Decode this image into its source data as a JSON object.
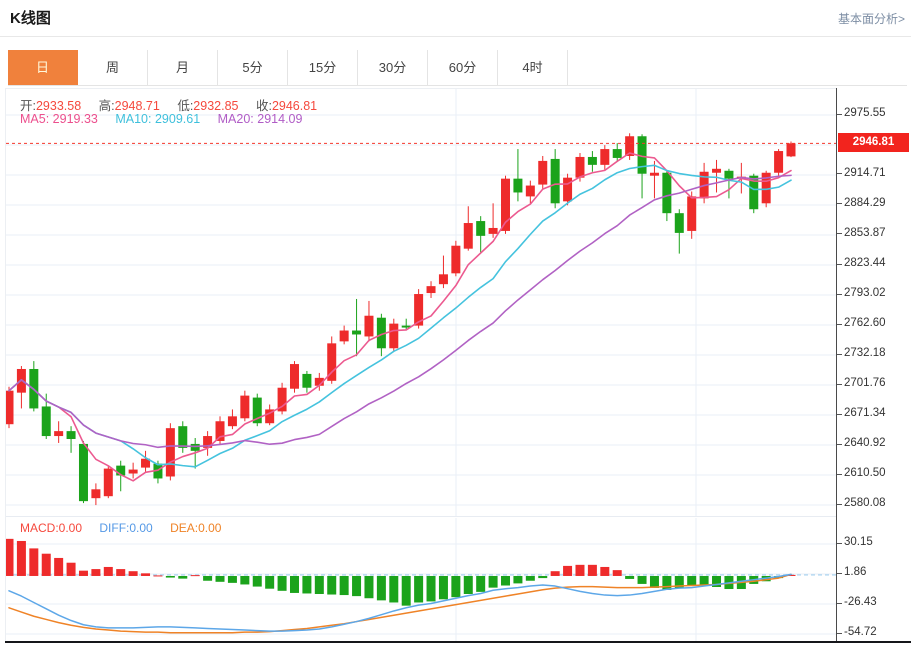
{
  "header": {
    "title": "K线图",
    "link": "基本面分析>"
  },
  "tabs": {
    "items": [
      {
        "label": "日",
        "active": true
      },
      {
        "label": "周",
        "active": false
      },
      {
        "label": "月",
        "active": false
      },
      {
        "label": "5分",
        "active": false
      },
      {
        "label": "15分",
        "active": false
      },
      {
        "label": "30分",
        "active": false
      },
      {
        "label": "60分",
        "active": false
      },
      {
        "label": "4时",
        "active": false
      }
    ]
  },
  "ohlc": {
    "open_label": "开:",
    "open": "2933.58",
    "high_label": "高:",
    "high": "2948.71",
    "low_label": "低:",
    "low": "2932.85",
    "close_label": "收:",
    "close": "2946.81"
  },
  "ma": {
    "ma5_label": "MA5:",
    "ma5": "2919.33",
    "ma10_label": "MA10:",
    "ma10": "2909.61",
    "ma20_label": "MA20:",
    "ma20": "2914.09"
  },
  "macd_panel": {
    "macd_label": "MACD:",
    "macd_value": "0.00",
    "diff_label": "DIFF:",
    "diff_value": "0.00",
    "dea_label": "DEA:",
    "dea_value": "0.00"
  },
  "main_axis": {
    "current_price": "2946.81"
  },
  "colors": {
    "accent_orange": "#f0813c",
    "candle_up": "#ee2b2b",
    "candle_down": "#1ba31b",
    "ma5": "#ec5a90",
    "ma10": "#45c3de",
    "ma20": "#b162c4",
    "price_line": "#f5382c",
    "tag_bg": "#f2241e",
    "diff_line": "#5da7e8",
    "dea_line": "#ef8327",
    "grid": "#eaeff7",
    "macd_dash": "#b8daf2",
    "text_red": "#f5493d"
  },
  "chart_data": [
    {
      "type": "candlestick",
      "interval": "日",
      "current_price": 2946.81,
      "y_axis_ticks": [
        "2975.55",
        "2914.71",
        "2884.29",
        "2853.87",
        "2823.44",
        "2793.02",
        "2762.60",
        "2732.18",
        "2701.76",
        "2671.34",
        "2640.92",
        "2610.50",
        "2580.08"
      ],
      "y_tick_values": [
        2975.55,
        2914.71,
        2884.29,
        2853.87,
        2823.44,
        2793.02,
        2762.6,
        2732.18,
        2701.76,
        2671.34,
        2640.92,
        2610.5,
        2580.08
      ],
      "gridline_values": [
        2975.55,
        2945.13,
        2914.71,
        2884.29,
        2853.87,
        2823.44,
        2793.02,
        2762.6,
        2732.18,
        2701.76,
        2671.34,
        2640.92,
        2610.5,
        2580.08
      ],
      "ma_periods": [
        5,
        10,
        20
      ],
      "candles": [
        [
          2662,
          2700,
          2658,
          2696
        ],
        [
          2694,
          2721,
          2678,
          2718
        ],
        [
          2718,
          2726,
          2675,
          2678
        ],
        [
          2680,
          2693,
          2647,
          2650
        ],
        [
          2650,
          2665,
          2643,
          2655
        ],
        [
          2655,
          2660,
          2633,
          2647
        ],
        [
          2642,
          2645,
          2582,
          2584
        ],
        [
          2587,
          2602,
          2580,
          2596
        ],
        [
          2589,
          2620,
          2587,
          2617
        ],
        [
          2620,
          2625,
          2594,
          2610
        ],
        [
          2612,
          2623,
          2607,
          2616
        ],
        [
          2618,
          2635,
          2614,
          2627
        ],
        [
          2622,
          2625,
          2602,
          2607
        ],
        [
          2609,
          2663,
          2605,
          2658
        ],
        [
          2660,
          2665,
          2633,
          2638
        ],
        [
          2642,
          2648,
          2617,
          2635
        ],
        [
          2638,
          2655,
          2630,
          2650
        ],
        [
          2645,
          2670,
          2642,
          2665
        ],
        [
          2660,
          2677,
          2657,
          2670
        ],
        [
          2668,
          2696,
          2665,
          2691
        ],
        [
          2689,
          2693,
          2660,
          2663
        ],
        [
          2663,
          2682,
          2661,
          2677
        ],
        [
          2675,
          2704,
          2672,
          2699
        ],
        [
          2698,
          2726,
          2694,
          2723
        ],
        [
          2713,
          2716,
          2694,
          2699
        ],
        [
          2701,
          2714,
          2696,
          2709
        ],
        [
          2706,
          2751,
          2703,
          2744
        ],
        [
          2746,
          2762,
          2743,
          2757
        ],
        [
          2757,
          2789,
          2731,
          2753
        ],
        [
          2751,
          2787,
          2746,
          2772
        ],
        [
          2770,
          2774,
          2731,
          2739
        ],
        [
          2739,
          2769,
          2736,
          2764
        ],
        [
          2762,
          2769,
          2757,
          2760
        ],
        [
          2762,
          2799,
          2759,
          2794
        ],
        [
          2795,
          2807,
          2790,
          2802
        ],
        [
          2804,
          2833,
          2800,
          2814
        ],
        [
          2815,
          2848,
          2812,
          2843
        ],
        [
          2840,
          2883,
          2838,
          2866
        ],
        [
          2868,
          2873,
          2836,
          2853
        ],
        [
          2855,
          2886,
          2851,
          2861
        ],
        [
          2858,
          2914,
          2855,
          2911
        ],
        [
          2911,
          2941,
          2888,
          2897
        ],
        [
          2893,
          2909,
          2886,
          2904
        ],
        [
          2905,
          2934,
          2900,
          2929
        ],
        [
          2931,
          2941,
          2881,
          2886
        ],
        [
          2888,
          2916,
          2884,
          2912
        ],
        [
          2912,
          2937,
          2908,
          2933
        ],
        [
          2933,
          2939,
          2918,
          2925
        ],
        [
          2925,
          2945,
          2920,
          2941
        ],
        [
          2941,
          2947,
          2928,
          2932
        ],
        [
          2934,
          2957,
          2930,
          2954
        ],
        [
          2954,
          2956,
          2891,
          2916
        ],
        [
          2914,
          2929,
          2891,
          2917
        ],
        [
          2917,
          2919,
          2868,
          2876
        ],
        [
          2876,
          2880,
          2835,
          2856
        ],
        [
          2858,
          2898,
          2850,
          2893
        ],
        [
          2891,
          2927,
          2886,
          2918
        ],
        [
          2917,
          2930,
          2897,
          2921
        ],
        [
          2919,
          2921,
          2891,
          2911
        ],
        [
          2911,
          2927,
          2896,
          2913
        ],
        [
          2914,
          2916,
          2876,
          2880
        ],
        [
          2886,
          2919,
          2882,
          2917
        ],
        [
          2917,
          2941,
          2913,
          2939
        ],
        [
          2933.58,
          2948.71,
          2932.85,
          2946.81
        ]
      ]
    },
    {
      "type": "bar",
      "name": "MACD",
      "y_axis_ticks": [
        "30.15",
        "1.86",
        "-26.43",
        "-54.72"
      ],
      "y_tick_values": [
        30.15,
        1.86,
        -26.43,
        -54.72
      ],
      "hist": [
        35,
        33,
        26,
        21,
        17,
        12.5,
        5,
        6.5,
        8.5,
        6.5,
        4.5,
        2.5,
        0.5,
        -1.5,
        -2.5,
        0.8,
        -4.5,
        -5.5,
        -6.5,
        -8,
        -10,
        -12,
        -14,
        -16,
        -16.5,
        -17,
        -17.5,
        -18,
        -19,
        -21,
        -23,
        -25,
        -28,
        -25,
        -24,
        -22,
        -20,
        -17,
        -15,
        -11,
        -9,
        -7,
        -4.5,
        -2,
        4.5,
        9.5,
        10.5,
        10.5,
        8.5,
        5.5,
        -2.8,
        -7.5,
        -11.3,
        -13.2,
        -11.3,
        -9.4,
        -8.5,
        -10.4,
        -12.3,
        -12.3,
        -7.5,
        -5,
        -2,
        1
      ],
      "diff": [
        -14,
        -19,
        -25,
        -31,
        -37,
        -42,
        -46,
        -48,
        -49,
        -49,
        -49,
        -48.5,
        -48,
        -48,
        -48.5,
        -49,
        -49.5,
        -50,
        -50.5,
        -51,
        -51.5,
        -52,
        -52,
        -51.5,
        -51,
        -50,
        -48,
        -45.5,
        -43,
        -40,
        -36.5,
        -33,
        -30,
        -27.5,
        -26,
        -23.5,
        -21,
        -18.5,
        -16.5,
        -13.5,
        -12,
        -11,
        -9.5,
        -8.5,
        -9.5,
        -12,
        -14.5,
        -16.5,
        -18,
        -18.5,
        -18,
        -16.5,
        -14.5,
        -12.5,
        -11.5,
        -11,
        -9.5,
        -8,
        -6.5,
        -5,
        -3.5,
        -2,
        -0.5,
        1.5
      ],
      "dea": [
        -30,
        -34,
        -38,
        -41,
        -44,
        -46.5,
        -48.5,
        -50,
        -51,
        -52,
        -52.5,
        -53,
        -53,
        -53.5,
        -53.5,
        -53.5,
        -53.5,
        -53.5,
        -53.5,
        -53,
        -53,
        -52.5,
        -51.5,
        -50.5,
        -49.5,
        -48,
        -46.5,
        -45,
        -43,
        -41,
        -39,
        -37,
        -35,
        -33,
        -31,
        -29,
        -27,
        -25,
        -23,
        -21,
        -19,
        -17,
        -15,
        -13,
        -11.5,
        -10.5,
        -10,
        -10,
        -10.5,
        -11,
        -11,
        -11,
        -10.5,
        -10,
        -9.5,
        -9,
        -8.5,
        -8,
        -7,
        -6,
        -5,
        -3.5,
        -2,
        1.5
      ]
    }
  ]
}
